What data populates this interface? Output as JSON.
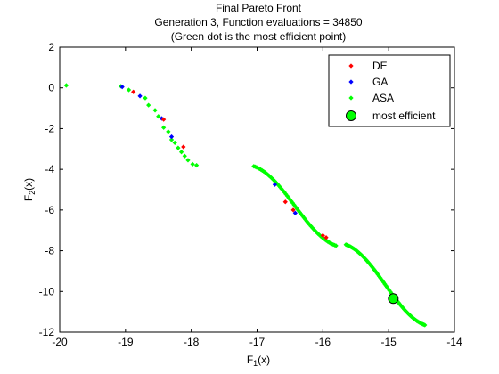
{
  "chart_data": {
    "type": "scatter",
    "title_lines": [
      "Final Pareto Front",
      "Generation 3, Function evaluations = 34850",
      "(Green dot is the most efficient point)"
    ],
    "xlabel_main": "F",
    "xlabel_sub": "1",
    "xlabel_tail": "(x)",
    "ylabel_main": "F",
    "ylabel_sub": "2",
    "ylabel_tail": "(x)",
    "xlim": [
      -20,
      -14
    ],
    "ylim": [
      -12,
      2
    ],
    "xticks": [
      -20,
      -19,
      -18,
      -17,
      -16,
      -15,
      -14
    ],
    "yticks": [
      -12,
      -10,
      -8,
      -6,
      -4,
      -2,
      0,
      2
    ],
    "xtick_labels": [
      "-20",
      "-19",
      "-18",
      "-17",
      "-16",
      "-15",
      "-14"
    ],
    "ytick_labels": [
      "-12",
      "-10",
      "-8",
      "-6",
      "-4",
      "-2",
      "0",
      "2"
    ],
    "legend_position": "top-right",
    "series": [
      {
        "name": "DE",
        "color": "#ff0000",
        "marker": "diamond",
        "points": [
          [
            -18.88,
            -0.2
          ],
          [
            -18.42,
            -1.55
          ],
          [
            -18.12,
            -2.9
          ],
          [
            -16.57,
            -5.6
          ],
          [
            -16.45,
            -6.0
          ],
          [
            -16.0,
            -7.25
          ],
          [
            -15.95,
            -7.35
          ]
        ]
      },
      {
        "name": "GA",
        "color": "#0000ff",
        "marker": "diamond",
        "points": [
          [
            -19.05,
            0.05
          ],
          [
            -18.78,
            -0.4
          ],
          [
            -18.45,
            -1.5
          ],
          [
            -18.3,
            -2.4
          ],
          [
            -16.73,
            -4.75
          ],
          [
            -16.42,
            -6.15
          ]
        ]
      },
      {
        "name": "ASA",
        "color": "#00ff00",
        "marker": "diamond",
        "segments": [
          {
            "type": "points",
            "points": [
              [
                -19.9,
                0.12
              ],
              [
                -19.07,
                0.08
              ],
              [
                -18.95,
                -0.1
              ],
              [
                -18.7,
                -0.5
              ],
              [
                -18.65,
                -0.85
              ],
              [
                -18.55,
                -1.1
              ],
              [
                -18.5,
                -1.4
              ],
              [
                -18.42,
                -1.95
              ],
              [
                -18.35,
                -2.15
              ],
              [
                -18.3,
                -2.55
              ],
              [
                -18.25,
                -2.7
              ],
              [
                -18.2,
                -2.95
              ],
              [
                -18.15,
                -3.15
              ],
              [
                -18.1,
                -3.35
              ],
              [
                -18.05,
                -3.55
              ],
              [
                -17.98,
                -3.75
              ],
              [
                -17.92,
                -3.8
              ]
            ]
          },
          {
            "type": "curve",
            "from": -17.05,
            "to": -15.8,
            "count": 60,
            "y_start": -3.85,
            "y_end": -7.75
          },
          {
            "type": "curve",
            "from": -15.65,
            "to": -14.45,
            "count": 70,
            "y_start": -7.7,
            "y_end": -11.65
          }
        ]
      }
    ],
    "most_efficient": {
      "name": "most efficient",
      "x": -14.93,
      "y": -10.35,
      "color": "#00ff00"
    }
  }
}
